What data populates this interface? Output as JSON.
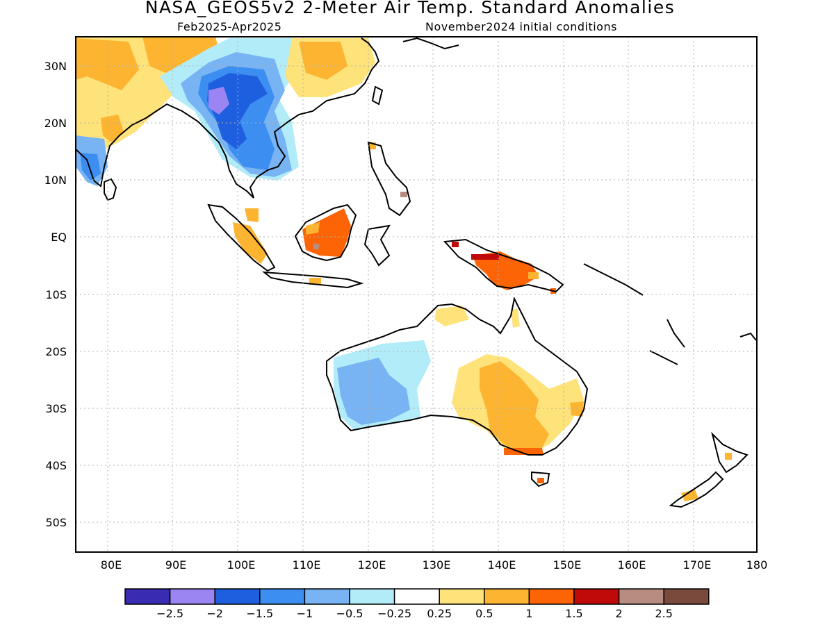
{
  "title": "NASA_GEOS5v2 2-Meter Air Temp. Standard Anomalies",
  "subtitle_left": "Feb2025-Apr2025",
  "subtitle_right": "November2024 initial conditions",
  "lon_ticks": [
    "80E",
    "90E",
    "100E",
    "110E",
    "120E",
    "130E",
    "140E",
    "150E",
    "160E",
    "170E",
    "180"
  ],
  "lat_ticks": [
    "30N",
    "20N",
    "10N",
    "EQ",
    "10S",
    "20S",
    "30S",
    "40S",
    "50S"
  ],
  "colorbar": {
    "colors": [
      "#3a2bb3",
      "#9a85f2",
      "#1e5fe0",
      "#3c8ef0",
      "#78b4f4",
      "#b2ecf8",
      "#ffffff",
      "#fee27a",
      "#fdb531",
      "#fd6405",
      "#c00a0a",
      "#b88c80",
      "#7a4a3c"
    ],
    "labels": [
      "-2.5",
      "-2",
      "-1.5",
      "-1",
      "-0.5",
      "-0.25",
      "0.25",
      "0.5",
      "1",
      "1.5",
      "2",
      "2.5"
    ]
  },
  "chart_data": {
    "type": "heatmap",
    "title": "NASA_GEOS5v2 2-Meter Air Temp. Standard Anomalies",
    "subtitle": "Feb2025-Apr2025 / November2024 initial conditions",
    "lon_range": [
      "75E",
      "180"
    ],
    "lat_range": [
      "35N",
      "55S"
    ],
    "grid": true,
    "levels": [
      -2.5,
      -2,
      -1.5,
      -1,
      -0.5,
      -0.25,
      0.25,
      0.5,
      1,
      1.5,
      2,
      2.5
    ],
    "regions": [
      {
        "name": "India",
        "anomaly": "0.5 to 1"
      },
      {
        "name": "Southern China / Indochina",
        "anomaly": "-1.5 to -0.5"
      },
      {
        "name": "Borneo",
        "anomaly": "1 to 1.5"
      },
      {
        "name": "New Guinea",
        "anomaly": "1 to 2"
      },
      {
        "name": "Western Australia",
        "anomaly": "-1 to -0.5"
      },
      {
        "name": "Southeastern Australia",
        "anomaly": "0.5 to 1.5"
      }
    ]
  }
}
